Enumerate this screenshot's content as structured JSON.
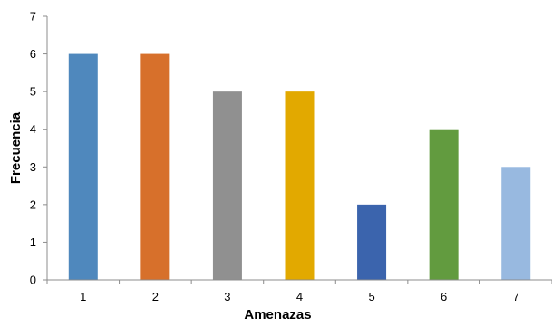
{
  "chart_data": {
    "type": "bar",
    "categories": [
      "1",
      "2",
      "3",
      "4",
      "5",
      "6",
      "7"
    ],
    "values": [
      6,
      6,
      5,
      5,
      2,
      4,
      3
    ],
    "colors": [
      "#4f88bd",
      "#d7702b",
      "#909090",
      "#e2a900",
      "#3b64ad",
      "#629b3f",
      "#98b9e0"
    ],
    "title": "",
    "xlabel": "Amenazas",
    "ylabel": "Frecuencia",
    "ylim": [
      0,
      7
    ],
    "yticks": [
      "0",
      "1",
      "2",
      "3",
      "4",
      "5",
      "6",
      "7"
    ],
    "grid": false,
    "legend": "none"
  }
}
